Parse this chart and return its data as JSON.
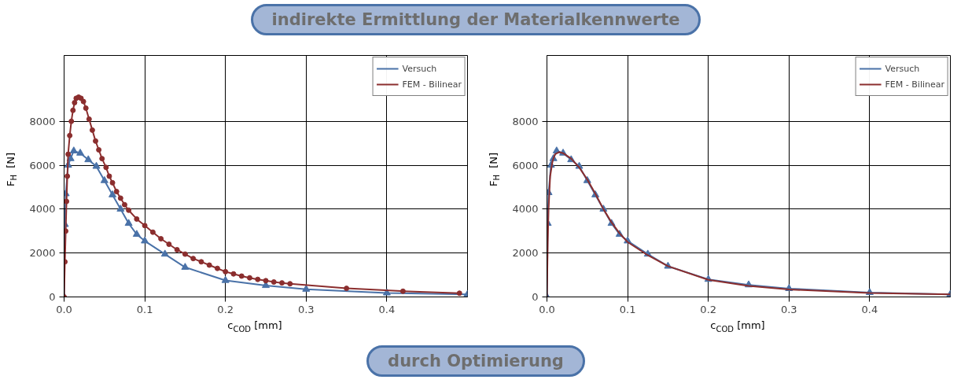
{
  "chart_data": [
    {
      "type": "line",
      "xlabel": "c$_{COD}$ [mm]",
      "ylabel": "F$_{H}$  [N]",
      "xlim": [
        0,
        0.5
      ],
      "ylim": [
        0,
        11000
      ],
      "xticks": [
        {
          "value": 0,
          "label": "0.0"
        },
        0.1,
        0.2,
        0.3,
        0.4
      ],
      "yticks": [
        0,
        2000,
        4000,
        6000,
        8000
      ],
      "grid": true,
      "legend": "top right",
      "annotations": [
        "indirekte Ermittlung der Materialkennwerte",
        "durch Optimierung"
      ],
      "series": [
        {
          "name": "Versuch",
          "color": "#4a72a8",
          "marker": "triangle",
          "x": [
            0,
            0.001,
            0.002,
            0.005,
            0.008,
            0.012,
            0.02,
            0.03,
            0.04,
            0.05,
            0.06,
            0.07,
            0.08,
            0.09,
            0.1,
            0.125,
            0.15,
            0.2,
            0.25,
            0.3,
            0.4,
            0.5
          ],
          "values": [
            0,
            3300,
            4700,
            6000,
            6300,
            6650,
            6550,
            6250,
            5950,
            5300,
            4650,
            4000,
            3350,
            2850,
            2550,
            1950,
            1350,
            750,
            520,
            350,
            180,
            120
          ]
        },
        {
          "name": "FEM - Bilinear",
          "color": "#8b2e2e",
          "marker": "circle",
          "x": [
            0,
            0.001,
            0.002,
            0.003,
            0.004,
            0.005,
            0.007,
            0.009,
            0.011,
            0.013,
            0.015,
            0.018,
            0.021,
            0.024,
            0.027,
            0.031,
            0.035,
            0.039,
            0.043,
            0.047,
            0.052,
            0.056,
            0.06,
            0.065,
            0.07,
            0.075,
            0.08,
            0.09,
            0.1,
            0.11,
            0.12,
            0.13,
            0.14,
            0.15,
            0.16,
            0.17,
            0.18,
            0.19,
            0.2,
            0.21,
            0.22,
            0.23,
            0.24,
            0.25,
            0.26,
            0.27,
            0.28,
            0.35,
            0.42,
            0.49
          ],
          "values": [
            0,
            1600,
            3000,
            4350,
            5500,
            6500,
            7350,
            8000,
            8500,
            8850,
            9050,
            9100,
            9050,
            8900,
            8600,
            8100,
            7600,
            7100,
            6700,
            6300,
            5900,
            5500,
            5200,
            4800,
            4500,
            4200,
            3950,
            3550,
            3250,
            2950,
            2650,
            2400,
            2150,
            1950,
            1750,
            1600,
            1450,
            1300,
            1150,
            1050,
            950,
            870,
            800,
            740,
            680,
            640,
            600,
            390,
            260,
            170
          ]
        }
      ]
    },
    {
      "type": "line",
      "xlabel": "c$_{COD}$ [mm]",
      "ylabel": "F$_{H}$  [N]",
      "xlim": [
        0,
        0.5
      ],
      "ylim": [
        0,
        11000
      ],
      "xticks": [
        {
          "value": 0,
          "label": "0.0"
        },
        0.1,
        0.2,
        0.3,
        0.4
      ],
      "yticks": [
        0,
        2000,
        4000,
        6000,
        8000
      ],
      "grid": true,
      "legend": "top right",
      "series": [
        {
          "name": "Versuch",
          "color": "#4a72a8",
          "marker": "triangle",
          "x": [
            0,
            0.001,
            0.002,
            0.005,
            0.008,
            0.012,
            0.02,
            0.03,
            0.04,
            0.05,
            0.06,
            0.07,
            0.08,
            0.09,
            0.1,
            0.125,
            0.15,
            0.2,
            0.25,
            0.3,
            0.4,
            0.5
          ],
          "values": [
            0,
            3350,
            4750,
            6000,
            6300,
            6650,
            6550,
            6250,
            5950,
            5300,
            4650,
            4000,
            3350,
            2850,
            2550,
            1950,
            1400,
            800,
            550,
            380,
            200,
            120
          ]
        },
        {
          "name": "FEM - Bilinear",
          "color": "#8b2e2e",
          "marker": "none",
          "x": [
            0,
            0.001,
            0.002,
            0.004,
            0.007,
            0.01,
            0.015,
            0.02,
            0.03,
            0.04,
            0.05,
            0.06,
            0.07,
            0.08,
            0.09,
            0.1,
            0.125,
            0.15,
            0.2,
            0.25,
            0.3,
            0.4,
            0.5
          ],
          "values": [
            0,
            2500,
            4000,
            5500,
            6200,
            6500,
            6600,
            6550,
            6300,
            5900,
            5350,
            4700,
            4000,
            3400,
            2900,
            2500,
            1900,
            1400,
            780,
            500,
            340,
            180,
            120
          ]
        }
      ]
    }
  ]
}
